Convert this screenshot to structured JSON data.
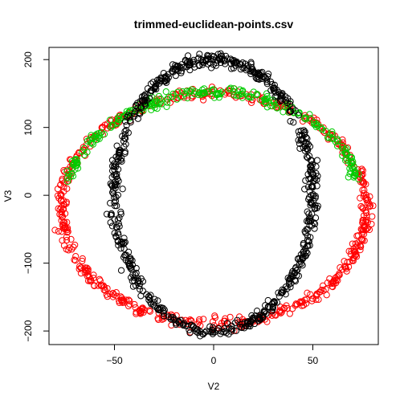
{
  "chart_data": {
    "type": "scatter",
    "title": "trimmed-euclidean-points.csv",
    "xlabel": "V2",
    "ylabel": "V3",
    "xlim": [
      -83,
      83
    ],
    "ylim": [
      -220,
      218
    ],
    "x_ticks": [
      -50,
      0,
      50
    ],
    "y_ticks": [
      -200,
      -100,
      0,
      100,
      200
    ],
    "grid": false,
    "legend": "none",
    "marker": "open-circle",
    "series": [
      {
        "color": "#000000",
        "shape": "ellipse",
        "center": [
          0,
          0
        ],
        "radius_x": 50,
        "radius_y": 200,
        "n_points": 700
      },
      {
        "color": "#00cc00",
        "shape": "upper-ellipse-arc",
        "center": [
          0,
          -15
        ],
        "radius_x": 75,
        "radius_y": 165,
        "y_min": 20,
        "n_points": 250
      },
      {
        "color": "#ff0000",
        "shape": "ellipse",
        "center": [
          0,
          -20
        ],
        "radius_x": 77,
        "radius_y": 170,
        "n_points": 600
      }
    ]
  }
}
